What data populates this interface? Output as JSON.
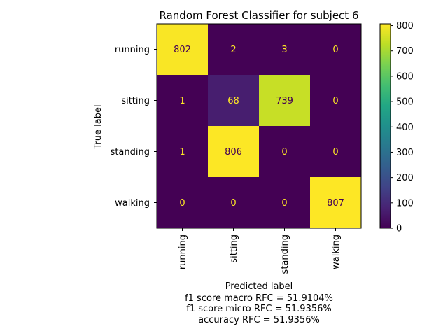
{
  "chart_data": {
    "type": "heatmap",
    "title": "Random Forest Classifier for subject 6",
    "xlabel": "Predicted label",
    "ylabel": "True label",
    "x_categories": [
      "running",
      "sitting",
      "standing",
      "walking"
    ],
    "y_categories": [
      "running",
      "sitting",
      "standing",
      "walking"
    ],
    "values": [
      [
        802,
        2,
        3,
        0
      ],
      [
        1,
        68,
        739,
        0
      ],
      [
        1,
        806,
        0,
        0
      ],
      [
        0,
        0,
        0,
        807
      ]
    ],
    "colormap": "viridis",
    "colorbar": {
      "range": [
        0,
        807
      ],
      "ticks": [
        0,
        100,
        200,
        300,
        400,
        500,
        600,
        700,
        800
      ],
      "tick_labels": [
        "0",
        "100",
        "200",
        "300",
        "400",
        "500",
        "600",
        "700",
        "800"
      ]
    },
    "text_colors": {
      "on_dark": "#fde725",
      "on_light": "#440154"
    },
    "footer_lines": [
      "f1 score macro RFC = 51.9104%",
      "f1 score micro RFC = 51.9356%",
      "accuracy RFC = 51.9356%"
    ]
  }
}
